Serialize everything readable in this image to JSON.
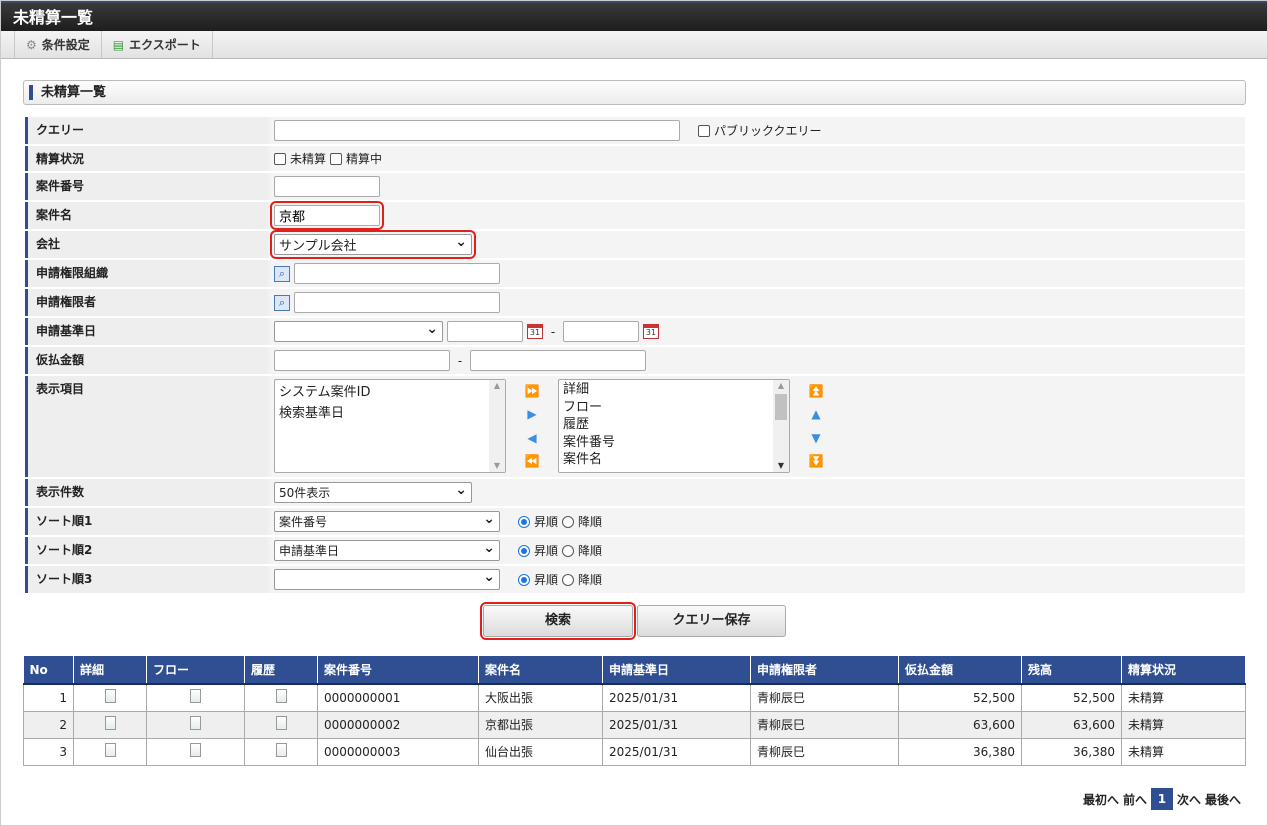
{
  "window": {
    "title": "未精算一覧"
  },
  "toolbar": {
    "settings": "条件設定",
    "export": "エクスポート"
  },
  "section": {
    "title": "未精算一覧"
  },
  "form": {
    "query": {
      "label": "クエリー",
      "value": "",
      "public_label": "パブリッククエリー"
    },
    "status": {
      "label": "精算状況",
      "options": [
        "未精算",
        "精算中"
      ]
    },
    "case_no": {
      "label": "案件番号",
      "value": ""
    },
    "case_name": {
      "label": "案件名",
      "value": "京都"
    },
    "company": {
      "label": "会社",
      "value": "サンプル会社"
    },
    "org": {
      "label": "申請権限組織",
      "value": ""
    },
    "applicant": {
      "label": "申請権限者",
      "value": ""
    },
    "base_date": {
      "label": "申請基準日",
      "select": "",
      "sep": "-",
      "cal": "31"
    },
    "amount": {
      "label": "仮払金額",
      "sep": "-"
    },
    "columns": {
      "label": "表示項目",
      "available": [
        "システム案件ID",
        "検索基準日"
      ],
      "selected": [
        "詳細",
        "フロー",
        "履歴",
        "案件番号",
        "案件名"
      ]
    },
    "count": {
      "label": "表示件数",
      "value": "50件表示"
    },
    "sorts": [
      {
        "label": "ソート順1",
        "value": "案件番号",
        "asc": "昇順",
        "desc": "降順"
      },
      {
        "label": "ソート順2",
        "value": "申請基準日",
        "asc": "昇順",
        "desc": "降順"
      },
      {
        "label": "ソート順3",
        "value": "",
        "asc": "昇順",
        "desc": "降順"
      }
    ]
  },
  "buttons": {
    "search": "検索",
    "save_query": "クエリー保存"
  },
  "table": {
    "headers": [
      "No",
      "詳細",
      "フロー",
      "履歴",
      "案件番号",
      "案件名",
      "申請基準日",
      "申請権限者",
      "仮払金額",
      "残高",
      "精算状況"
    ],
    "rows": [
      {
        "no": "1",
        "case_no": "0000000001",
        "name": "大阪出張",
        "date": "2025/01/31",
        "applicant": "青柳辰巳",
        "amount": "52,500",
        "balance": "52,500",
        "status": "未精算"
      },
      {
        "no": "2",
        "case_no": "0000000002",
        "name": "京都出張",
        "date": "2025/01/31",
        "applicant": "青柳辰巳",
        "amount": "63,600",
        "balance": "63,600",
        "status": "未精算"
      },
      {
        "no": "3",
        "case_no": "0000000003",
        "name": "仙台出張",
        "date": "2025/01/31",
        "applicant": "青柳辰巳",
        "amount": "36,380",
        "balance": "36,380",
        "status": "未精算"
      }
    ]
  },
  "pager": {
    "first": "最初へ",
    "prev": "前へ",
    "current": "1",
    "next": "次へ",
    "last": "最後へ"
  },
  "colors": {
    "accent": "#2f4f92",
    "highlight": "#e0201a"
  }
}
